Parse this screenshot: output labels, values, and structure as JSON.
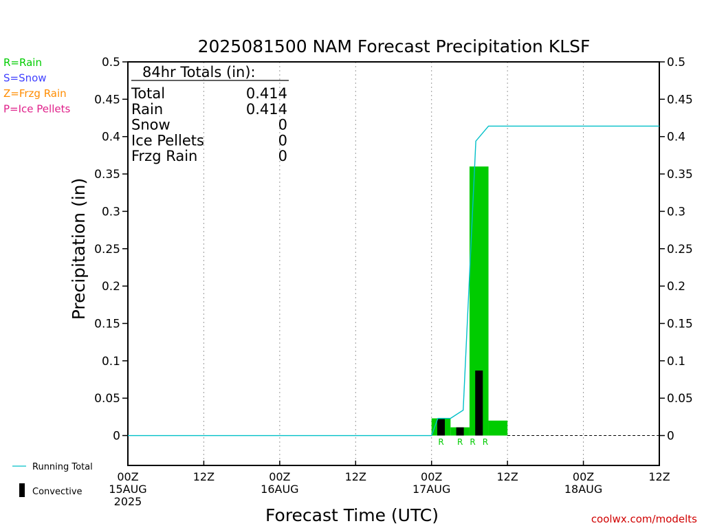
{
  "chart_data": {
    "type": "bar",
    "title": "2025081500 NAM Forecast Precipitation KLSF",
    "xlabel": "Forecast Time (UTC)",
    "ylabel": "Precipitation (in)",
    "ylim": [
      -0.04,
      0.5
    ],
    "y_ticks": [
      "0.5",
      "0.45",
      "0.4",
      "0.35",
      "0.3",
      "0.25",
      "0.2",
      "0.15",
      "0.1",
      "0.05",
      "0"
    ],
    "y_tick_values": [
      0.5,
      0.45,
      0.4,
      0.35,
      0.3,
      0.25,
      0.2,
      0.15,
      0.1,
      0.05,
      0
    ],
    "x_range_hours": [
      0,
      84
    ],
    "x_ticks": [
      {
        "hour": 0,
        "lines": [
          "00Z",
          "15AUG",
          "2025"
        ]
      },
      {
        "hour": 12,
        "lines": [
          "12Z"
        ]
      },
      {
        "hour": 24,
        "lines": [
          "00Z",
          "16AUG"
        ]
      },
      {
        "hour": 36,
        "lines": [
          "12Z"
        ]
      },
      {
        "hour": 48,
        "lines": [
          "00Z",
          "17AUG"
        ]
      },
      {
        "hour": 60,
        "lines": [
          "12Z"
        ]
      },
      {
        "hour": 72,
        "lines": [
          "00Z",
          "18AUG"
        ]
      },
      {
        "hour": 84,
        "lines": [
          "12Z"
        ]
      }
    ],
    "grid": true,
    "series": [
      {
        "name": "Rain",
        "color": "#00cc00",
        "points": [
          {
            "hour": 51,
            "value": 0.023,
            "convective": 0.022
          },
          {
            "hour": 54,
            "value": 0.011,
            "convective": 0.011
          },
          {
            "hour": 57,
            "value": 0.36,
            "convective": 0.087
          },
          {
            "hour": 60,
            "value": 0.02,
            "convective": 0.0
          }
        ]
      }
    ],
    "running_total": {
      "name": "Running Total",
      "color": "#00bfc8",
      "points": [
        {
          "hour": 0,
          "value": 0
        },
        {
          "hour": 48,
          "value": 0
        },
        {
          "hour": 49,
          "value": 0.023
        },
        {
          "hour": 51,
          "value": 0.023
        },
        {
          "hour": 53,
          "value": 0.034
        },
        {
          "hour": 55,
          "value": 0.394
        },
        {
          "hour": 57,
          "value": 0.414
        },
        {
          "hour": 84,
          "value": 0.414
        }
      ]
    },
    "precip_type_labels": [
      {
        "hour": 51,
        "text": "R"
      },
      {
        "hour": 54,
        "text": "R"
      },
      {
        "hour": 56,
        "text": "R"
      },
      {
        "hour": 58,
        "text": "R"
      }
    ],
    "legend_entries": [
      {
        "text": "R=Rain",
        "color": "#00cc00"
      },
      {
        "text": "S=Snow",
        "color": "#4040ff"
      },
      {
        "text": "Z=Frzg Rain",
        "color": "#ff8c00"
      },
      {
        "text": "P=Ice Pellets",
        "color": "#e0208a"
      }
    ],
    "totals": {
      "header": "84hr Totals (in):",
      "rows": [
        {
          "label": "Total",
          "value": "0.414"
        },
        {
          "label": "Rain",
          "value": "0.414"
        },
        {
          "label": "Snow",
          "value": "0"
        },
        {
          "label": "Ice Pellets",
          "value": "0"
        },
        {
          "label": "Frzg Rain",
          "value": "0"
        }
      ]
    },
    "bottom_legend": {
      "running_total": "Running Total",
      "convective": "Convective"
    },
    "credit": "coolwx.com/modelts"
  }
}
